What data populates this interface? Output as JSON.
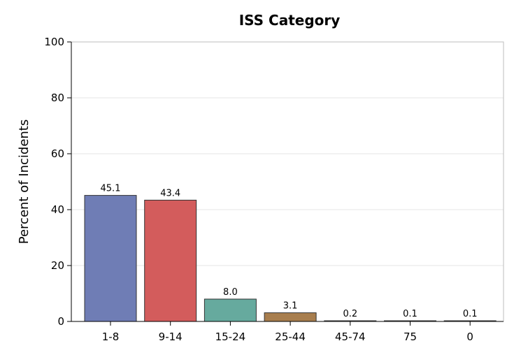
{
  "chart_data": {
    "type": "bar",
    "title": "ISS Category",
    "xlabel": "",
    "ylabel": "Percent of Incidents",
    "categories": [
      "1-8",
      "9-14",
      "15-24",
      "25-44",
      "45-74",
      "75",
      "0"
    ],
    "values": [
      45.1,
      43.4,
      8.0,
      3.1,
      0.2,
      0.1,
      0.1
    ],
    "data_labels": [
      "45.1",
      "43.4",
      "8.0",
      "3.1",
      "0.2",
      "0.1",
      "0.1"
    ],
    "colors": [
      "#6f7db5",
      "#d35c5c",
      "#66aa9e",
      "#a87e4e",
      "#9a78b8",
      "#b8b46c",
      "#5aa8b4"
    ],
    "ylim": [
      0,
      100
    ],
    "yticks": [
      0,
      20,
      40,
      60,
      80,
      100
    ],
    "grid": true,
    "legend": "none"
  }
}
